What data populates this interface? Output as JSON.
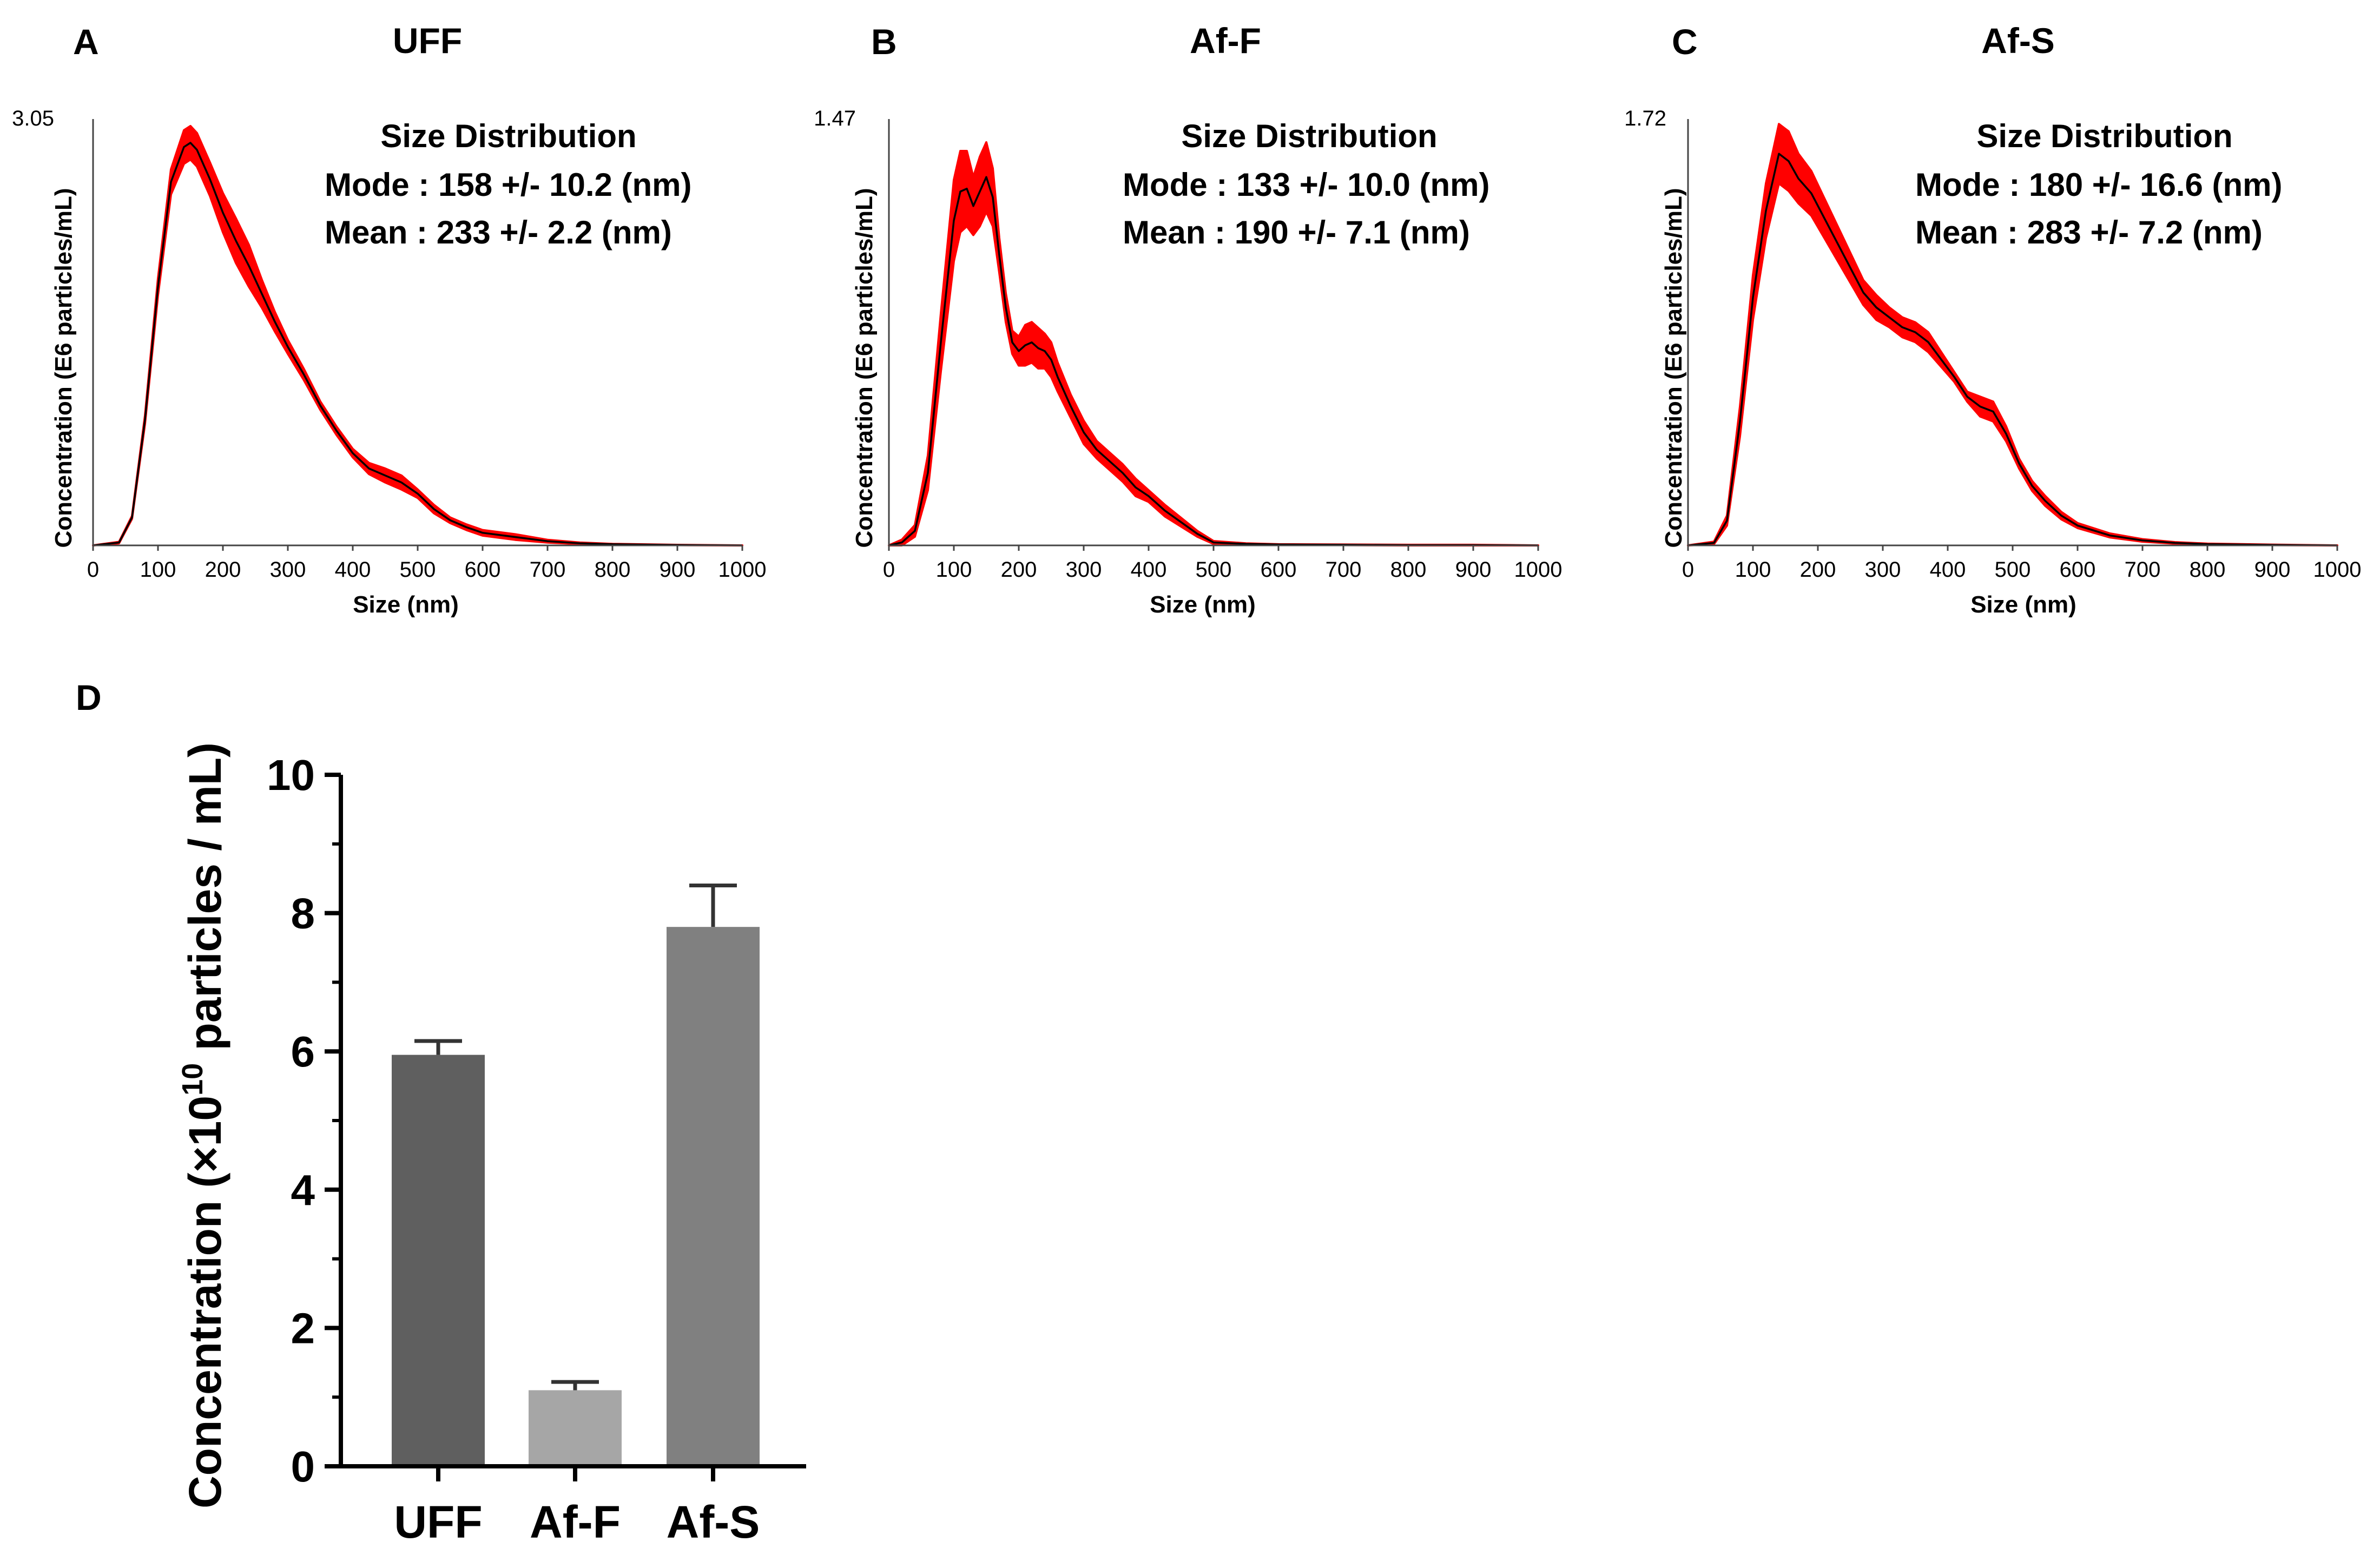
{
  "chart_data": [
    {
      "type": "area",
      "panel": "A",
      "title": "UFF",
      "xlabel": "Size (nm)",
      "ylabel": "Concentration (E6 particles/mL)",
      "ymax_label": "3.05",
      "xlim": [
        0,
        1000
      ],
      "ylim": [
        0,
        3.05
      ],
      "xticks": [
        "0",
        "100",
        "200",
        "300",
        "400",
        "500",
        "600",
        "700",
        "800",
        "900",
        "1000"
      ],
      "annotations": [
        "Size Distribution",
        "Mode : 158 +/- 10.2 (nm)",
        "Mean : 233 +/- 2.2   (nm)"
      ],
      "x": [
        0,
        40,
        60,
        80,
        100,
        120,
        140,
        150,
        160,
        180,
        200,
        220,
        240,
        260,
        280,
        300,
        325,
        350,
        375,
        400,
        425,
        450,
        475,
        500,
        525,
        550,
        575,
        600,
        650,
        700,
        750,
        800,
        900,
        1000
      ],
      "y": [
        0.0,
        0.02,
        0.2,
        0.9,
        1.85,
        2.6,
        2.85,
        2.88,
        2.83,
        2.62,
        2.38,
        2.18,
        2.0,
        1.8,
        1.6,
        1.42,
        1.22,
        1.0,
        0.82,
        0.66,
        0.55,
        0.5,
        0.45,
        0.37,
        0.26,
        0.18,
        0.13,
        0.09,
        0.06,
        0.03,
        0.015,
        0.008,
        0.003,
        0.0
      ],
      "err": [
        0.0,
        0.005,
        0.01,
        0.03,
        0.06,
        0.09,
        0.12,
        0.12,
        0.12,
        0.12,
        0.14,
        0.16,
        0.15,
        0.1,
        0.07,
        0.05,
        0.04,
        0.03,
        0.03,
        0.03,
        0.04,
        0.05,
        0.05,
        0.03,
        0.03,
        0.02,
        0.02,
        0.02,
        0.02,
        0.01,
        0.005,
        0.003,
        0.001,
        0.0
      ],
      "colors": {
        "band": "#ff0000",
        "line": "#000000"
      }
    },
    {
      "type": "area",
      "panel": "B",
      "title": "Af-F",
      "xlabel": "Size (nm)",
      "ylabel": "Concentration (E6 particles/mL)",
      "ymax_label": "1.47",
      "xlim": [
        0,
        1000
      ],
      "ylim": [
        0,
        1.47
      ],
      "xticks": [
        "0",
        "100",
        "200",
        "300",
        "400",
        "500",
        "600",
        "700",
        "800",
        "900",
        "1000"
      ],
      "annotations": [
        "Size Distribution",
        "Mode : 133 +/- 10.0 (nm)",
        "Mean : 190 +/- 7.1    (nm)"
      ],
      "x": [
        0,
        20,
        40,
        60,
        80,
        100,
        110,
        120,
        130,
        140,
        150,
        160,
        170,
        180,
        190,
        200,
        210,
        220,
        230,
        240,
        250,
        260,
        280,
        300,
        320,
        340,
        360,
        380,
        400,
        425,
        450,
        475,
        500,
        550,
        600,
        700,
        800,
        900,
        1000
      ],
      "y": [
        0.0,
        0.01,
        0.05,
        0.25,
        0.7,
        1.12,
        1.22,
        1.23,
        1.17,
        1.22,
        1.27,
        1.2,
        1.0,
        0.82,
        0.7,
        0.67,
        0.69,
        0.7,
        0.68,
        0.67,
        0.64,
        0.58,
        0.48,
        0.39,
        0.33,
        0.29,
        0.25,
        0.2,
        0.17,
        0.12,
        0.08,
        0.04,
        0.01,
        0.005,
        0.003,
        0.002,
        0.001,
        0.001,
        0.0
      ],
      "err": [
        0.0,
        0.01,
        0.02,
        0.06,
        0.1,
        0.14,
        0.14,
        0.13,
        0.1,
        0.12,
        0.12,
        0.1,
        0.06,
        0.05,
        0.04,
        0.05,
        0.07,
        0.07,
        0.07,
        0.06,
        0.06,
        0.05,
        0.04,
        0.04,
        0.03,
        0.03,
        0.03,
        0.03,
        0.02,
        0.02,
        0.015,
        0.01,
        0.005,
        0.002,
        0.001,
        0.001,
        0.001,
        0.001,
        0.0
      ],
      "colors": {
        "band": "#ff0000",
        "line": "#000000"
      }
    },
    {
      "type": "area",
      "panel": "C",
      "title": "Af-S",
      "xlabel": "Size (nm)",
      "ylabel": "Concentration (E6 particles/mL)",
      "ymax_label": "1.72",
      "xlim": [
        0,
        1000
      ],
      "ylim": [
        0,
        1.72
      ],
      "xticks": [
        "0",
        "100",
        "200",
        "300",
        "400",
        "500",
        "600",
        "700",
        "800",
        "900",
        "1000"
      ],
      "annotations": [
        "Size Distribution",
        "Mode : 180 +/- 16.6 (nm)",
        "Mean : 283 +/- 7.2    (nm)"
      ],
      "x": [
        0,
        40,
        60,
        80,
        100,
        120,
        140,
        155,
        170,
        190,
        210,
        230,
        250,
        270,
        290,
        310,
        330,
        350,
        370,
        390,
        410,
        430,
        450,
        470,
        490,
        510,
        530,
        550,
        575,
        600,
        650,
        700,
        750,
        800,
        900,
        1000
      ],
      "y": [
        0.0,
        0.01,
        0.1,
        0.5,
        1.0,
        1.35,
        1.58,
        1.55,
        1.48,
        1.42,
        1.32,
        1.22,
        1.12,
        1.02,
        0.96,
        0.92,
        0.88,
        0.86,
        0.82,
        0.75,
        0.68,
        0.6,
        0.56,
        0.54,
        0.45,
        0.33,
        0.24,
        0.18,
        0.12,
        0.08,
        0.04,
        0.02,
        0.01,
        0.005,
        0.002,
        0.0
      ],
      "err": [
        0.0,
        0.005,
        0.02,
        0.06,
        0.09,
        0.11,
        0.12,
        0.12,
        0.1,
        0.09,
        0.08,
        0.07,
        0.06,
        0.05,
        0.05,
        0.04,
        0.04,
        0.04,
        0.04,
        0.03,
        0.02,
        0.02,
        0.04,
        0.04,
        0.03,
        0.02,
        0.02,
        0.02,
        0.015,
        0.01,
        0.008,
        0.005,
        0.003,
        0.002,
        0.001,
        0.0
      ],
      "colors": {
        "band": "#ff0000",
        "line": "#000000"
      }
    },
    {
      "type": "bar",
      "panel": "D",
      "categories": [
        "UFF",
        "Af-F",
        "Af-S"
      ],
      "values": [
        5.95,
        1.1,
        7.8
      ],
      "errors": [
        0.2,
        0.12,
        0.6
      ],
      "ylabel_prefix": "Concentration (×10",
      "ylabel_exp": "10",
      "ylabel_suffix": " particles / mL)",
      "ylim": [
        0,
        10
      ],
      "yticks": [
        "0",
        "2",
        "4",
        "6",
        "8",
        "10"
      ],
      "colors": [
        "#5f5f5f",
        "#a6a6a6",
        "#808080"
      ]
    }
  ]
}
